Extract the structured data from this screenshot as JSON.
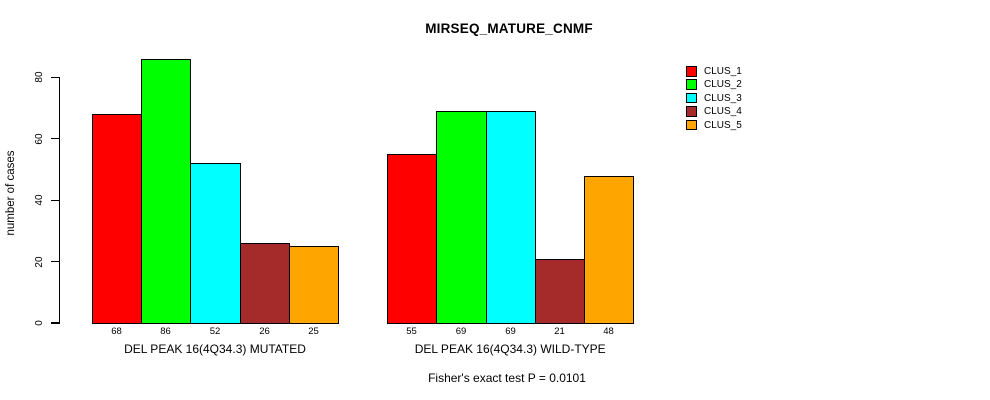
{
  "chart_data": {
    "type": "bar",
    "title": "MIRSEQ_MATURE_CNMF",
    "ylabel": "number of cases",
    "xlabel": "",
    "yticks": [
      0,
      20,
      40,
      60,
      80
    ],
    "ylim": [
      0,
      86
    ],
    "grid": false,
    "legend_position": "top-right",
    "clusters": [
      {
        "label": "CLUS_1",
        "color": "#FF0000"
      },
      {
        "label": "CLUS_2",
        "color": "#00FF00"
      },
      {
        "label": "CLUS_3",
        "color": "#00FFFF"
      },
      {
        "label": "CLUS_4",
        "color": "#A52A2A"
      },
      {
        "label": "CLUS_5",
        "color": "#FFA500"
      }
    ],
    "groups": [
      {
        "label": "DEL PEAK 16(4Q34.3) MUTATED",
        "values": [
          68,
          86,
          52,
          26,
          25
        ]
      },
      {
        "label": "DEL PEAK 16(4Q34.3) WILD-TYPE",
        "values": [
          55,
          69,
          69,
          21,
          48
        ]
      }
    ],
    "bar_value_labels_visible": true,
    "footnote": "Fisher's exact test P = 0.0101"
  }
}
